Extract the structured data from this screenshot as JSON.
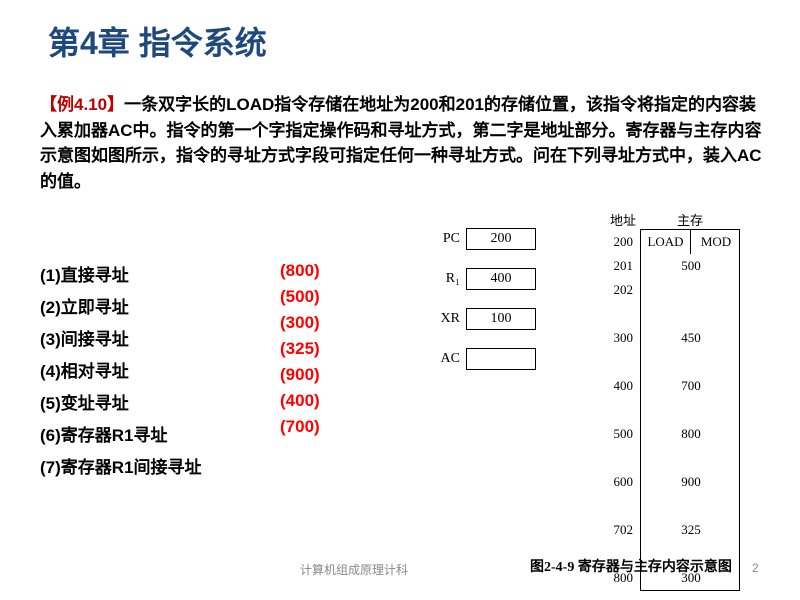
{
  "title": "第4章 指令系统",
  "example": {
    "tag": "【例4.10】",
    "text": "一条双字长的LOAD指令存储在地址为200和201的存储位置，该指令将指定的内容装入累加器AC中。指令的第一个字指定操作码和寻址方式，第二字是地址部分。寄存器与主存内容示意图如图所示，指令的寻址方式字段可指定任何一种寻址方式。问在下列寻址方式中，装入AC的值。"
  },
  "list": [
    "(1)直接寻址",
    "(2)立即寻址",
    "(3)间接寻址",
    "(4)相对寻址",
    "(5)变址寻址",
    "(6)寄存器R1寻址",
    "(7)寄存器R1间接寻址"
  ],
  "answers": [
    "(800)",
    "(500)",
    "(300)",
    "(325)",
    "(900)",
    "(400)",
    "(700)"
  ],
  "registers": [
    {
      "label": "PC",
      "value": "200"
    },
    {
      "label": "R₁",
      "value": "400"
    },
    {
      "label": "XR",
      "value": "100"
    },
    {
      "label": "AC",
      "value": ""
    }
  ],
  "memory": {
    "head_addr": "地址",
    "head_mem": "主存",
    "rows": [
      {
        "addr": "200",
        "split": true,
        "c1": "LOAD",
        "c2": "MOD"
      },
      {
        "addr": "201",
        "val": "500"
      },
      {
        "addr": "202",
        "val": ""
      },
      {
        "addr": "",
        "val": ""
      },
      {
        "addr": "300",
        "val": "450"
      },
      {
        "addr": "",
        "val": ""
      },
      {
        "addr": "400",
        "val": "700"
      },
      {
        "addr": "",
        "val": ""
      },
      {
        "addr": "500",
        "val": "800"
      },
      {
        "addr": "",
        "val": ""
      },
      {
        "addr": "600",
        "val": "900"
      },
      {
        "addr": "",
        "val": ""
      },
      {
        "addr": "702",
        "val": "325"
      },
      {
        "addr": "",
        "val": ""
      },
      {
        "addr": "800",
        "val": "300"
      }
    ]
  },
  "fig_caption": "图2-4-9  寄存器与主存内容示意图",
  "footer": "计算机组成原理计科",
  "page": "2"
}
